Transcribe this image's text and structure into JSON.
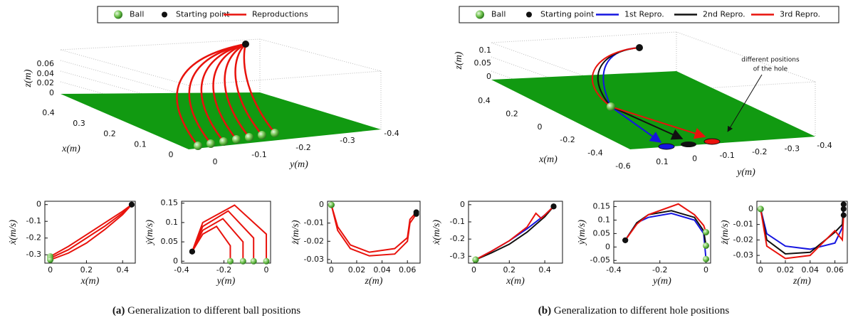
{
  "panels": [
    {
      "legend": [
        {
          "label": "Ball",
          "color": "#5cb85c"
        },
        {
          "label": "Starting point",
          "color": "#111111"
        },
        {
          "label": "Reproductions",
          "color": "#e8120c"
        }
      ],
      "plot3d": {
        "zlabel": "z(m)",
        "xlabel": "x(m)",
        "ylabel": "y(m)",
        "zticks": [
          0,
          0.02,
          0.04,
          0.06
        ],
        "xticks": [
          0.4,
          0.3,
          0.2,
          0.1,
          0
        ],
        "yticks": [
          0,
          -0.1,
          -0.2,
          -0.3,
          -0.4
        ]
      },
      "caption": {
        "tag": "(a)",
        "text": "Generalization to different ball positions"
      }
    },
    {
      "legend": [
        {
          "label": "Ball",
          "color": "#5cb85c"
        },
        {
          "label": "Starting point",
          "color": "#111111"
        },
        {
          "label": "1st Repro.",
          "color": "#1515e0"
        },
        {
          "label": "2nd Repro.",
          "color": "#111111"
        },
        {
          "label": "3rd Repro.",
          "color": "#e8120c"
        }
      ],
      "plot3d": {
        "zlabel": "z(m)",
        "xlabel": "x(m)",
        "ylabel": "y(m)",
        "zticks": [
          0.1,
          0.05,
          0
        ],
        "xticks": [
          0.4,
          0.2,
          0,
          -0.2,
          -0.4,
          -0.6
        ],
        "yticks": [
          0.1,
          0,
          -0.1,
          -0.2,
          -0.3,
          -0.4
        ]
      },
      "annotation": [
        "different positions",
        "of the hole"
      ],
      "caption": {
        "tag": "(b)",
        "text": "Generalization to different hole positions"
      }
    }
  ],
  "chart_data": [
    {
      "type": "line",
      "xlabel": "x(m)",
      "ylabel": "ẋ(m/s)",
      "xlim": [
        -0.03,
        0.47
      ],
      "ylim": [
        -0.35,
        0.02
      ],
      "xticks": [
        0,
        0.2,
        0.4
      ],
      "yticks": [
        0,
        -0.1,
        -0.2,
        -0.3
      ],
      "series": [
        {
          "color": "#e8120c",
          "x": [
            0.45,
            0.4,
            0.3,
            0.2,
            0.1,
            0
          ],
          "values": [
            0,
            -0.04,
            -0.11,
            -0.18,
            -0.25,
            -0.31
          ]
        },
        {
          "color": "#e8120c",
          "x": [
            0.45,
            0.4,
            0.3,
            0.2,
            0.1,
            0
          ],
          "values": [
            0,
            -0.05,
            -0.13,
            -0.2,
            -0.27,
            -0.32
          ]
        },
        {
          "color": "#e8120c",
          "x": [
            0.45,
            0.4,
            0.3,
            0.2,
            0.1,
            0
          ],
          "values": [
            0,
            -0.06,
            -0.15,
            -0.23,
            -0.29,
            -0.33
          ]
        }
      ]
    },
    {
      "type": "line",
      "xlabel": "y(m)",
      "ylabel": "ẏ(m/s)",
      "xlim": [
        -0.4,
        0.02
      ],
      "ylim": [
        -0.005,
        0.155
      ],
      "xticks": [
        -0.4,
        -0.2,
        0
      ],
      "yticks": [
        0,
        0.05,
        0.1,
        0.15
      ],
      "series": [
        {
          "color": "#e8120c",
          "x": [
            -0.35,
            -0.3,
            -0.235,
            -0.17,
            -0.17
          ],
          "values": [
            0.025,
            0.07,
            0.09,
            0.04,
            0
          ]
        },
        {
          "color": "#e8120c",
          "x": [
            -0.35,
            -0.3,
            -0.205,
            -0.11,
            -0.11
          ],
          "values": [
            0.025,
            0.08,
            0.11,
            0.05,
            0
          ]
        },
        {
          "color": "#e8120c",
          "x": [
            -0.35,
            -0.3,
            -0.18,
            -0.06,
            -0.06
          ],
          "values": [
            0.025,
            0.09,
            0.13,
            0.06,
            0
          ]
        },
        {
          "color": "#e8120c",
          "x": [
            -0.35,
            -0.3,
            -0.15,
            0,
            0
          ],
          "values": [
            0.025,
            0.1,
            0.145,
            0.07,
            0
          ]
        }
      ]
    },
    {
      "type": "line",
      "xlabel": "z(m)",
      "ylabel": "ż(m/s)",
      "xlim": [
        -0.003,
        0.07
      ],
      "ylim": [
        -0.032,
        0.002
      ],
      "xticks": [
        0,
        0.02,
        0.04,
        0.06
      ],
      "yticks": [
        0,
        -0.01,
        -0.02,
        -0.03
      ],
      "series": [
        {
          "color": "#e8120c",
          "x": [
            0.067,
            0.062,
            0.06,
            0.05,
            0.03,
            0.015,
            0.005,
            0
          ],
          "values": [
            -0.004,
            -0.008,
            -0.018,
            -0.024,
            -0.026,
            -0.022,
            -0.012,
            0
          ]
        },
        {
          "color": "#e8120c",
          "x": [
            0.067,
            0.062,
            0.06,
            0.05,
            0.03,
            0.015,
            0.005,
            0
          ],
          "values": [
            -0.005,
            -0.01,
            -0.02,
            -0.027,
            -0.028,
            -0.024,
            -0.014,
            0
          ]
        }
      ]
    },
    {
      "type": "line",
      "xlabel": "x(m)",
      "ylabel": "ẋ(m/s)",
      "xlim": [
        -0.03,
        0.5
      ],
      "ylim": [
        -0.34,
        0.02
      ],
      "xticks": [
        0,
        0.2,
        0.4
      ],
      "yticks": [
        0,
        -0.1,
        -0.2,
        -0.3
      ],
      "series": [
        {
          "color": "#1515e0",
          "x": [
            0.45,
            0.4,
            0.3,
            0.2,
            0.1,
            0.01
          ],
          "values": [
            -0.01,
            -0.06,
            -0.14,
            -0.21,
            -0.27,
            -0.32
          ]
        },
        {
          "color": "#111111",
          "x": [
            0.45,
            0.4,
            0.3,
            0.2,
            0.1,
            0.01
          ],
          "values": [
            -0.01,
            -0.07,
            -0.16,
            -0.23,
            -0.28,
            -0.32
          ]
        },
        {
          "color": "#e8120c",
          "x": [
            0.45,
            0.38,
            0.35,
            0.3,
            0.2,
            0.1,
            0.01
          ],
          "values": [
            -0.01,
            -0.08,
            -0.05,
            -0.13,
            -0.21,
            -0.27,
            -0.32
          ]
        }
      ]
    },
    {
      "type": "line",
      "xlabel": "y(m)",
      "ylabel": "ẏ(m/s)",
      "xlim": [
        -0.4,
        0.02
      ],
      "ylim": [
        -0.06,
        0.17
      ],
      "xticks": [
        -0.4,
        -0.2,
        0
      ],
      "yticks": [
        -0.05,
        0,
        0.05,
        0.1,
        0.15
      ],
      "series": [
        {
          "color": "#1515e0",
          "x": [
            -0.35,
            -0.3,
            -0.25,
            -0.15,
            -0.05,
            -0.01,
            0
          ],
          "values": [
            0.025,
            0.09,
            0.11,
            0.125,
            0.1,
            0.05,
            -0.045
          ]
        },
        {
          "color": "#111111",
          "x": [
            -0.35,
            -0.3,
            -0.25,
            -0.15,
            -0.05,
            -0.01,
            0
          ],
          "values": [
            0.025,
            0.09,
            0.12,
            0.135,
            0.11,
            0.06,
            0.005
          ]
        },
        {
          "color": "#e8120c",
          "x": [
            -0.35,
            -0.3,
            -0.25,
            -0.12,
            -0.05,
            -0.01,
            0
          ],
          "values": [
            0.025,
            0.085,
            0.12,
            0.16,
            0.12,
            0.08,
            0.055
          ]
        }
      ]
    },
    {
      "type": "line",
      "xlabel": "z(m)",
      "ylabel": "ż(m/s)",
      "xlim": [
        -0.003,
        0.07
      ],
      "ylim": [
        -0.035,
        0.005
      ],
      "xticks": [
        0,
        0.02,
        0.04,
        0.06
      ],
      "yticks": [
        0,
        -0.01,
        -0.02,
        -0.03
      ],
      "series": [
        {
          "color": "#1515e0",
          "x": [
            0.067,
            0.066,
            0.06,
            0.04,
            0.02,
            0.005,
            0
          ],
          "values": [
            0,
            -0.012,
            -0.022,
            -0.026,
            -0.024,
            -0.016,
            0
          ]
        },
        {
          "color": "#111111",
          "x": [
            0.067,
            0.066,
            0.06,
            0.04,
            0.02,
            0.005,
            0
          ],
          "values": [
            0.003,
            -0.01,
            -0.015,
            -0.028,
            -0.029,
            -0.02,
            0
          ]
        },
        {
          "color": "#e8120c",
          "x": [
            0.067,
            0.066,
            0.06,
            0.04,
            0.02,
            0.005,
            0
          ],
          "values": [
            -0.004,
            -0.02,
            -0.014,
            -0.03,
            -0.032,
            -0.024,
            0
          ]
        }
      ]
    }
  ]
}
